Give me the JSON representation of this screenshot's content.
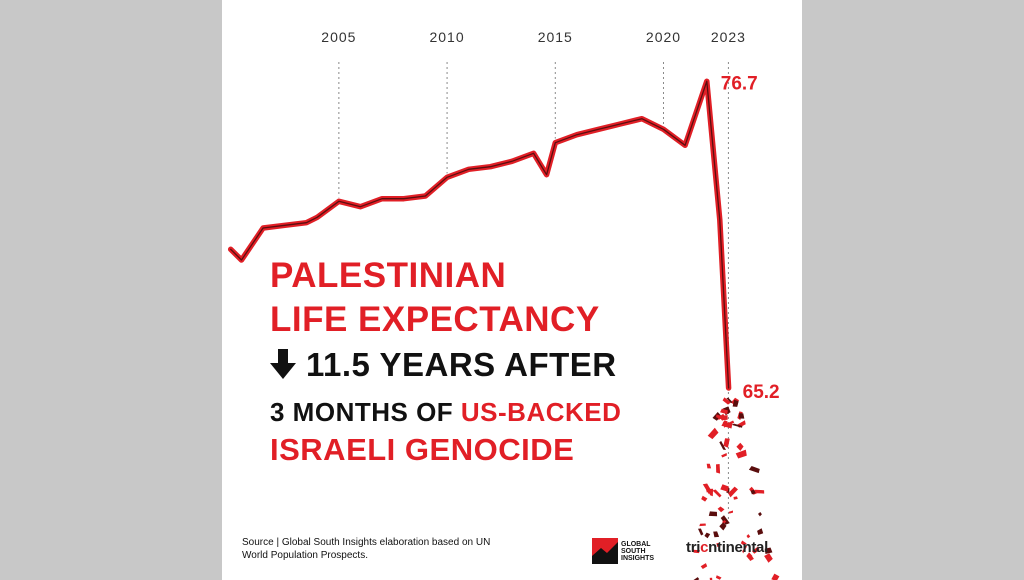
{
  "headline": {
    "line1": "PALESTINIAN",
    "line2": "LIFE EXPECTANCY",
    "line3": "11.5 YEARS AFTER",
    "line4_prefix": "3 MONTHS OF ",
    "line4_highlight": "US-BACKED",
    "line5": "ISRAELI GENOCIDE"
  },
  "source": "Source | Global South Insights elaboration based on UN World Population Prospects.",
  "logos": {
    "gsi_line1": "GLOBAL",
    "gsi_line2": "SOUTH",
    "gsi_line3": "INSIGHTS",
    "tri_prefix": "tri",
    "tri_o": "c",
    "tri_suffix": "ntinental"
  },
  "colors": {
    "accent": "#e11f26",
    "text": "#111111",
    "background": "#ffffff",
    "frame": "#c8c8c8"
  },
  "chart_data": {
    "type": "line",
    "title": "",
    "xlabel": "",
    "ylabel": "",
    "x_ticks": [
      2005,
      2010,
      2015,
      2020,
      2023
    ],
    "xlim": [
      1999.6,
      2026.4
    ],
    "ylim": [
      58,
      79
    ],
    "grid": "vertical dashed at labeled years",
    "series": [
      {
        "x": [
          2000,
          2000.5,
          2001.5,
          2002.5,
          2003.5,
          2004,
          2005,
          2006,
          2007,
          2008,
          2009,
          2010,
          2011,
          2012,
          2013,
          2014,
          2014.6,
          2015,
          2016,
          2017,
          2018,
          2019,
          2020,
          2021,
          2022,
          2022.6,
          2023.01
        ],
        "values": [
          70.4,
          70.0,
          71.2,
          71.3,
          71.4,
          71.6,
          72.2,
          72.0,
          72.3,
          72.3,
          72.4,
          73.1,
          73.4,
          73.5,
          73.7,
          74.0,
          73.2,
          74.4,
          74.7,
          74.9,
          75.1,
          75.3,
          74.9,
          74.3,
          76.7,
          71.5,
          65.2
        ]
      }
    ],
    "data_labels": [
      {
        "x": 2022,
        "value": "76.7"
      },
      {
        "x": 2023.01,
        "value": "65.2"
      }
    ]
  }
}
